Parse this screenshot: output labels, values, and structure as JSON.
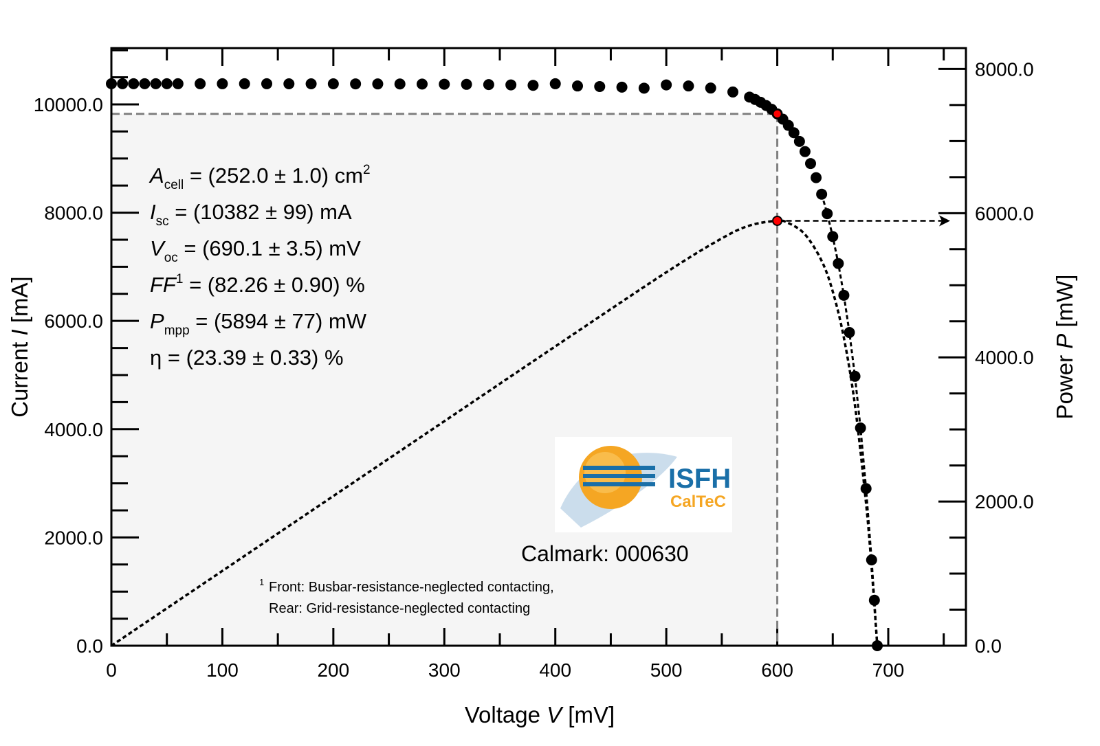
{
  "chart_data": {
    "type": "scatter",
    "xlabel": {
      "prefix": "Voltage ",
      "symbol": "V",
      "unit": " [mV]"
    },
    "ylabel": {
      "prefix": "Current ",
      "symbol": "I",
      "unit": " [mA]"
    },
    "y2label": {
      "prefix": "Power ",
      "symbol": "P",
      "unit": " [mW]"
    },
    "xlim": [
      0,
      770
    ],
    "ylim": [
      0,
      11040
    ],
    "y2lim": [
      0,
      8290
    ],
    "grid": false,
    "x_ticks": [
      "0",
      "100",
      "200",
      "300",
      "400",
      "500",
      "600",
      "700"
    ],
    "y_ticks": [
      "0.0",
      "2000.0",
      "4000.0",
      "6000.0",
      "8000.0",
      "10000.0"
    ],
    "y2_ticks": [
      "0.0",
      "2000.0",
      "4000.0",
      "6000.0",
      "8000.0"
    ],
    "series": [
      {
        "axis": "left",
        "style": "markers",
        "x": [
          0,
          10,
          20,
          30,
          40,
          50,
          60,
          80,
          100,
          120,
          140,
          160,
          180,
          200,
          220,
          240,
          260,
          280,
          300,
          320,
          340,
          360,
          380,
          400,
          420,
          440,
          460,
          480,
          500,
          520,
          540,
          560,
          575,
          580,
          585,
          590,
          595,
          600,
          605,
          610,
          615,
          620,
          625,
          630,
          635,
          640,
          645,
          650,
          655,
          660,
          665,
          670,
          675,
          680,
          685,
          687.5,
          690.1
        ],
        "y": [
          10382,
          10382,
          10382,
          10382,
          10382,
          10382,
          10381,
          10381,
          10381,
          10381,
          10381,
          10380,
          10380,
          10380,
          10379,
          10378,
          10377,
          10375,
          10373,
          10370,
          10366,
          10360,
          10352,
          10381,
          10340,
          10330,
          10318,
          10300,
          10360,
          10340,
          10302,
          10229,
          10135,
          10091,
          10039,
          9979,
          9909,
          9825,
          9727,
          9612,
          9476,
          9316,
          9128,
          8907,
          8647,
          8341,
          7981,
          7558,
          7061,
          6474,
          5786,
          4977,
          4022,
          2903,
          1585,
          840,
          0
        ]
      },
      {
        "axis": "right",
        "style": "dashed-line",
        "x": [
          0,
          100,
          200,
          300,
          400,
          500,
          550,
          575,
          600,
          610,
          625,
          640,
          650,
          660,
          670,
          680,
          685,
          690.1
        ],
        "y": [
          0,
          1038,
          2076,
          3114,
          4152,
          5180,
          5650,
          5828,
          5895,
          5863,
          5705,
          5338,
          4913,
          4273,
          3335,
          1974,
          1086,
          0
        ]
      }
    ],
    "mpp": {
      "voltage": 600,
      "current": 9825,
      "power": 5894,
      "marker_color": "#ff0000"
    },
    "parameters": [
      {
        "symbol": "A",
        "italic": true,
        "sub": "cell",
        "sup": "",
        "text": " = (252.0 ± 1.0) cm",
        "tail_sup": "2"
      },
      {
        "symbol": "I",
        "italic": true,
        "sub": "sc",
        "sup": "",
        "text": " = (10382 ± 99) mA",
        "tail_sup": ""
      },
      {
        "symbol": "V",
        "italic": true,
        "sub": "oc",
        "sup": "",
        "text": " = (690.1 ± 3.5) mV",
        "tail_sup": ""
      },
      {
        "symbol": "FF",
        "italic": true,
        "sub": "",
        "sup": "1",
        "text": " = (82.26 ± 0.90) %",
        "tail_sup": ""
      },
      {
        "symbol": "P",
        "italic": true,
        "sub": "mpp",
        "sup": "",
        "text": " = (5894 ± 77) mW",
        "tail_sup": ""
      },
      {
        "symbol": "η",
        "italic": false,
        "sub": "",
        "sup": "",
        "text": " = (23.39 ± 0.33) %",
        "tail_sup": ""
      }
    ],
    "footnote": {
      "mark": "1",
      "line1": "Front: Busbar-resistance-neglected contacting,",
      "line2": "Rear: Grid-resistance-neglected contacting"
    },
    "calmark": "Calmark: 000630",
    "logo": {
      "text1": "ISFH",
      "text2": "CalTeC",
      "blue": "#1a6fa8",
      "orange": "#f5a623"
    },
    "colors": {
      "shade": "#f5f5f5",
      "mpp_lines": "#808080",
      "points": "#000000"
    }
  }
}
